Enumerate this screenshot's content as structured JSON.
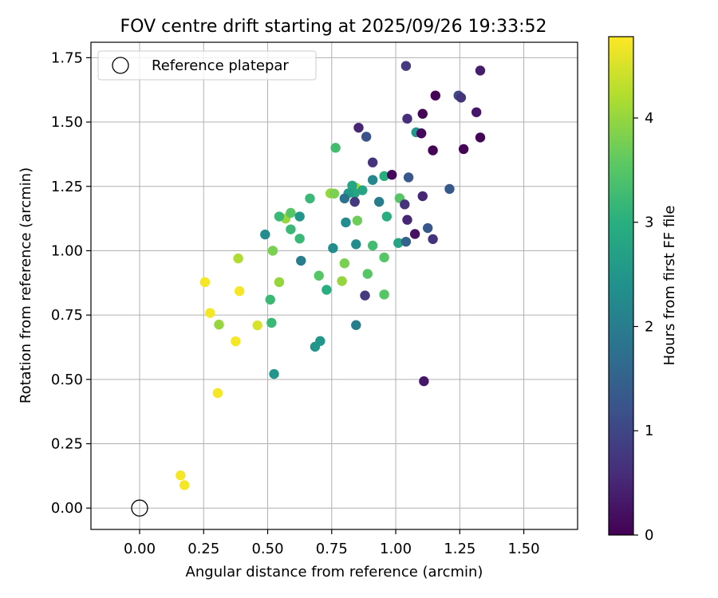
{
  "chart_data": {
    "type": "scatter",
    "title": "FOV centre drift starting at 2025/09/26 19:33:52",
    "xlabel": "Angular distance from reference (arcmin)",
    "ylabel": "Rotation from reference (arcmin)",
    "xlim": [
      -0.19,
      1.71
    ],
    "ylim": [
      -0.083,
      1.81
    ],
    "xticks": [
      "0.00",
      "0.25",
      "0.50",
      "0.75",
      "1.00",
      "1.25",
      "1.50"
    ],
    "yticks": [
      "0.00",
      "0.25",
      "0.50",
      "0.75",
      "1.00",
      "1.25",
      "1.50",
      "1.75"
    ],
    "grid": true,
    "legend": {
      "position": "top-left",
      "entries": [
        "Reference platepar"
      ]
    },
    "reference": {
      "x": 0.0,
      "y": 0.0
    },
    "colorbar": {
      "label": "Hours from first FF file",
      "range": [
        0,
        4.78
      ],
      "ticks": [
        "0",
        "1",
        "2",
        "3",
        "4"
      ],
      "colormap": "viridis"
    },
    "points": [
      [
        0.16,
        0.127,
        4.72
      ],
      [
        0.175,
        0.089,
        4.72
      ],
      [
        0.255,
        0.878,
        4.72
      ],
      [
        0.275,
        0.758,
        4.72
      ],
      [
        0.305,
        0.447,
        4.72
      ],
      [
        0.375,
        0.648,
        4.72
      ],
      [
        0.39,
        0.843,
        4.72
      ],
      [
        0.46,
        0.71,
        4.5
      ],
      [
        0.385,
        0.97,
        4.2
      ],
      [
        0.31,
        0.713,
        4.0
      ],
      [
        0.545,
        0.878,
        4.0
      ],
      [
        0.79,
        0.882,
        4.0
      ],
      [
        0.745,
        1.223,
        4.0
      ],
      [
        0.845,
        1.245,
        4.1
      ],
      [
        0.57,
        1.125,
        4.0
      ],
      [
        0.52,
        1.0,
        3.8
      ],
      [
        0.8,
        0.951,
        3.8
      ],
      [
        0.76,
        1.222,
        3.8
      ],
      [
        0.85,
        1.117,
        3.7
      ],
      [
        0.59,
        1.147,
        3.5
      ],
      [
        0.7,
        0.903,
        3.5
      ],
      [
        0.89,
        0.91,
        3.5
      ],
      [
        0.955,
        0.974,
        3.5
      ],
      [
        0.955,
        0.83,
        3.5
      ],
      [
        1.015,
        1.204,
        3.5
      ],
      [
        0.765,
        1.4,
        3.3
      ],
      [
        0.91,
        1.02,
        3.3
      ],
      [
        0.665,
        1.203,
        3.2
      ],
      [
        0.545,
        1.133,
        3.2
      ],
      [
        0.59,
        1.083,
        3.2
      ],
      [
        0.625,
        1.047,
        3.2
      ],
      [
        0.51,
        0.81,
        3.2
      ],
      [
        0.515,
        0.72,
        3.2
      ],
      [
        0.73,
        0.848,
        3.0
      ],
      [
        0.965,
        1.133,
        3.0
      ],
      [
        0.955,
        1.29,
        3.0
      ],
      [
        1.01,
        1.03,
        2.8
      ],
      [
        0.83,
        1.253,
        2.8
      ],
      [
        0.87,
        1.235,
        2.8
      ],
      [
        0.84,
        1.223,
        2.8
      ],
      [
        0.815,
        1.223,
        2.6
      ],
      [
        0.685,
        0.627,
        2.5
      ],
      [
        0.705,
        0.649,
        2.5
      ],
      [
        0.525,
        0.521,
        2.5
      ],
      [
        0.625,
        1.133,
        2.5
      ],
      [
        1.08,
        1.46,
        2.5
      ],
      [
        0.49,
        1.063,
        2.3
      ],
      [
        0.755,
        1.01,
        2.3
      ],
      [
        0.845,
        1.025,
        2.3
      ],
      [
        0.805,
        1.11,
        2.3
      ],
      [
        0.91,
        1.275,
        2.2
      ],
      [
        0.935,
        1.19,
        2.0
      ],
      [
        0.63,
        0.961,
        2.0
      ],
      [
        0.845,
        0.711,
        2.0
      ],
      [
        0.8,
        1.203,
        1.8
      ],
      [
        1.04,
        1.035,
        1.5
      ],
      [
        1.05,
        1.285,
        1.3
      ],
      [
        1.125,
        1.088,
        1.3
      ],
      [
        1.21,
        1.24,
        1.3
      ],
      [
        0.885,
        1.443,
        1.2
      ],
      [
        1.245,
        1.603,
        1.1
      ],
      [
        1.04,
        1.718,
        0.8
      ],
      [
        0.84,
        1.19,
        0.8
      ],
      [
        0.88,
        0.826,
        0.8
      ],
      [
        1.035,
        1.18,
        0.7
      ],
      [
        1.145,
        1.045,
        0.7
      ],
      [
        1.255,
        1.595,
        0.7
      ],
      [
        0.91,
        1.343,
        0.7
      ],
      [
        1.045,
        1.513,
        0.6
      ],
      [
        0.855,
        1.478,
        0.5
      ],
      [
        1.105,
        1.212,
        0.5
      ],
      [
        1.045,
        1.12,
        0.5
      ],
      [
        1.33,
        1.7,
        0.4
      ],
      [
        1.315,
        1.538,
        0.3
      ],
      [
        1.11,
        0.493,
        0.3
      ],
      [
        1.075,
        1.065,
        0.2
      ],
      [
        0.985,
        1.295,
        0.1
      ],
      [
        1.1,
        1.456,
        0.1
      ],
      [
        1.145,
        1.39,
        0.05
      ],
      [
        1.105,
        1.532,
        0.05
      ],
      [
        1.155,
        1.603,
        0.05
      ],
      [
        1.265,
        1.395,
        0.05
      ],
      [
        1.33,
        1.44,
        0.05
      ]
    ]
  }
}
